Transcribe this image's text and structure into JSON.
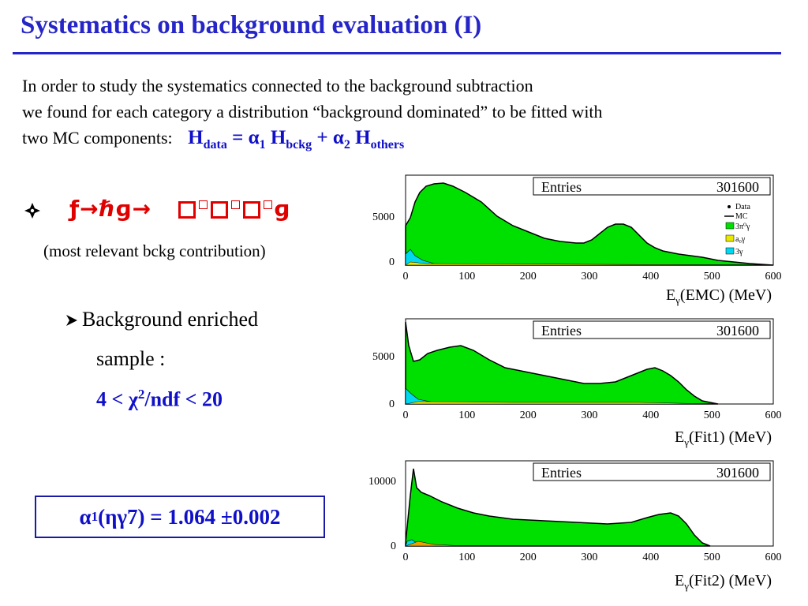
{
  "title": "Systematics on background evaluation (I)",
  "intro": {
    "line1": "In order to study the systematics connected to the background subtraction",
    "line2": "we found for each category a distribution “background dominated” to be fitted  with",
    "line3": "two MC components:",
    "formula": {
      "h1": "H",
      "sub_data": "data",
      "eq": " = α",
      "sub_1": "1",
      "h2": " H",
      "sub_bckg": "bckg",
      "plus": " + α",
      "sub_2": "2",
      "h3": " H",
      "sub_others": "others"
    }
  },
  "bullet": {
    "decay_prefix": "ƒ→ℏɡ→",
    "decay_suffix": "ɡ",
    "note": "(most relevant bckg contribution)"
  },
  "sub_bullet": {
    "label": "Background enriched",
    "label2": "sample :",
    "chi_prefix": "4 < ",
    "chi_symbol": "χ",
    "chi_exp": "2",
    "chi_suffix": "/ndf < 20"
  },
  "result": {
    "alpha": "α",
    "alpha_sub": "1",
    "rest": "(ηγ7) = 1.064 ±0.002"
  },
  "colors": {
    "title": "#2626c8",
    "formula": "#1010c8",
    "decay": "#e00000",
    "green": "#00e000",
    "yellow": "#e8e800",
    "cyan": "#00d8f0"
  },
  "plots": [
    {
      "entries_label": "Entries",
      "entries_value": "301600",
      "xlabel_pre": "E",
      "xlabel_sub": "γ",
      "xlabel_post": "(EMC) (MeV)",
      "y_ticks": [
        "0",
        "5000"
      ],
      "x_ticks": [
        "0",
        "100",
        "200",
        "300",
        "400",
        "500",
        "600"
      ],
      "legend": [
        {
          "label": "Data",
          "icon": "dot-icon"
        },
        {
          "label": "MC",
          "icon": "line-icon"
        },
        {
          "label": "3π⁰γ",
          "icon": "green-box-icon"
        },
        {
          "label": "a₀γ",
          "icon": "yellow-box-icon"
        },
        {
          "label": "3γ",
          "icon": "cyan-box-icon"
        }
      ]
    },
    {
      "entries_label": "Entries",
      "entries_value": "301600",
      "xlabel_pre": "E",
      "xlabel_sub": "γ",
      "xlabel_post": "(Fit1) (MeV)",
      "y_ticks": [
        "0",
        "5000"
      ],
      "x_ticks": [
        "0",
        "100",
        "200",
        "300",
        "400",
        "500",
        "600"
      ]
    },
    {
      "entries_label": "Entries",
      "entries_value": "301600",
      "xlabel_pre": "E",
      "xlabel_sub": "γ",
      "xlabel_post": "(Fit2) (MeV)",
      "y_ticks": [
        "0",
        "10000"
      ],
      "x_ticks": [
        "0",
        "100",
        "200",
        "300",
        "400",
        "500",
        "600"
      ]
    }
  ]
}
